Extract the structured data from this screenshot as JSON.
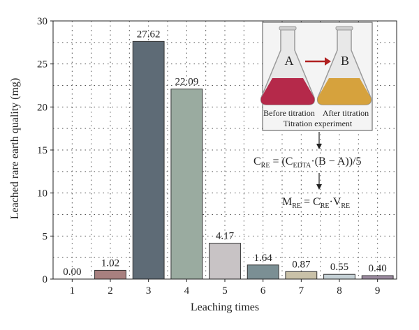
{
  "chart_data": {
    "type": "bar",
    "categories": [
      "1",
      "2",
      "3",
      "4",
      "5",
      "6",
      "7",
      "8",
      "9"
    ],
    "values": [
      0.0,
      1.02,
      27.62,
      22.09,
      4.17,
      1.64,
      0.87,
      0.55,
      0.4
    ],
    "data_labels": [
      "0.00",
      "1.02",
      "27.62",
      "22.09",
      "4.17",
      "1.64",
      "0.87",
      "0.55",
      "0.40"
    ],
    "bar_colors": [
      "#7a7a7a",
      "#a8807f",
      "#5e6b76",
      "#9aaba0",
      "#c8c3c5",
      "#7b8f94",
      "#c9c1a8",
      "#c5d1d6",
      "#9c8ba0"
    ],
    "xlabel": "Leaching times",
    "ylabel": "Leached rare earth quality (mg)",
    "ylim": [
      0,
      30
    ],
    "yticks": [
      0,
      5,
      10,
      15,
      20,
      25,
      30
    ],
    "grid": true
  },
  "inset": {
    "flask_a_label": "A",
    "flask_b_label": "B",
    "before_caption": "Before titration",
    "after_caption": "After titration",
    "experiment_caption": "Titration experiment",
    "flask_a_liquid_color": "#b0183c",
    "flask_b_liquid_color": "#d49a2a"
  },
  "formulas": {
    "c_re": {
      "main": "C",
      "sub": "RE",
      "eq": " = (C",
      "sub2": "EDTA",
      "rest": "·(B − A))/5"
    },
    "m_re": {
      "main": "M",
      "sub": "RE",
      "eq": " = C",
      "sub2": "RE",
      "mid": "·V",
      "sub3": "RE"
    }
  }
}
